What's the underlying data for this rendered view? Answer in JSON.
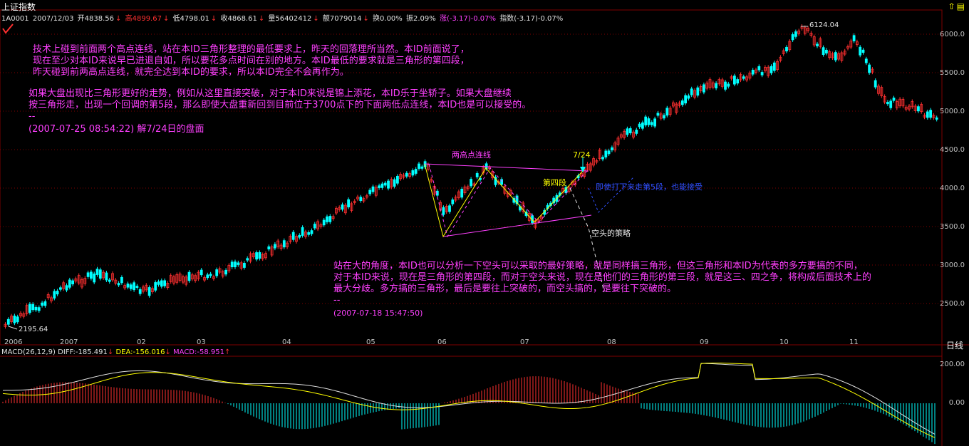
{
  "header": {
    "title": "上证指数",
    "code": "1A0001",
    "date": "2007/12/03",
    "open": "开4838.56",
    "high": "高4899.67",
    "low": "低4798.01",
    "close": "收4868.61",
    "volume": "量56402412",
    "amount": "额7079014",
    "turnover": "换0.00%",
    "amplitude": "振2.09%",
    "change": "涨(-3.17)-0.07%",
    "index": "指数(-3.17)-0.07%",
    "icons": [
      "up-arrow-icon",
      "settings-icon"
    ]
  },
  "price_axis": [
    "6000.0",
    "5500.0",
    "5000.0",
    "4500.0",
    "4000.0",
    "3500.0",
    "3000.0",
    "2500.0"
  ],
  "time_axis": [
    "2006",
    "2007",
    "02",
    "03",
    "04",
    "05",
    "06",
    "07",
    "08",
    "09",
    "10",
    "11"
  ],
  "period_label": "日线",
  "extremes": {
    "high": "6124.04",
    "low": "2195.64"
  },
  "annotations": {
    "para1": [
      "技术上碰到前面两个高点连线，站在本ID三角形整理的最低要求上，昨天的回落理所当然。本ID前面说了，",
      "现在至少对本ID来说早已进退自如，所以要花多点时间在别的地方。本ID最低的要求就是三角形的第四段，",
      "昨天碰到前两高点连线，就完全达到本ID的要求，所以本ID完全不会再作为。"
    ],
    "para2": [
      "如果大盘出现比三角形更好的走势，例如从这里直接突破，对于本ID来说是锦上添花，本ID乐于坐轿子。如果大盘继续",
      "按三角形走，出现一个回调的第5段，那么即使大盘重新回到目前位于3700点下的下面两低点连线，本ID也是可以接受的。"
    ],
    "sep1": "--",
    "date1": "(2007-07-25 08:54:22) 解7/24日的盘面",
    "label_two_highs": "两高点连线",
    "label_724": "7/24",
    "label_fourth": "第四段",
    "label_fifth": "即使打下来走第5段，也能接受",
    "label_bear": "空头的策略",
    "para3": [
      "站在大的角度，本ID也可以分析一下空头可以采取的最好策略，就是同样搞三角形，但这三角形和本ID为代表的多方要搞的不同，",
      "对于本ID来说，现在是三角形的第四段，而对于空头来说，现在是他们的三角形的第三段，就是这三、四之争，将构成后面技术上的",
      "最大分歧。多方搞的三角形，最后是要往上突破的，而空头搞的，是要往下突破的。"
    ],
    "sep2": "--",
    "date2": "(2007-07-18 15:47:50)"
  },
  "macd": {
    "label": "MACD(26,12,9)",
    "diff": "DIFF:-185.491",
    "dea": "DEA:-156.016",
    "macd": "MACD:-58.951",
    "axis": [
      "200.00",
      "0.00"
    ]
  },
  "colors": {
    "up": "#ff3030",
    "down": "#00ffff",
    "annotation": "#ff40ff",
    "grid": "#800000",
    "diff": "#ffffff",
    "dea": "#ffff00"
  }
}
